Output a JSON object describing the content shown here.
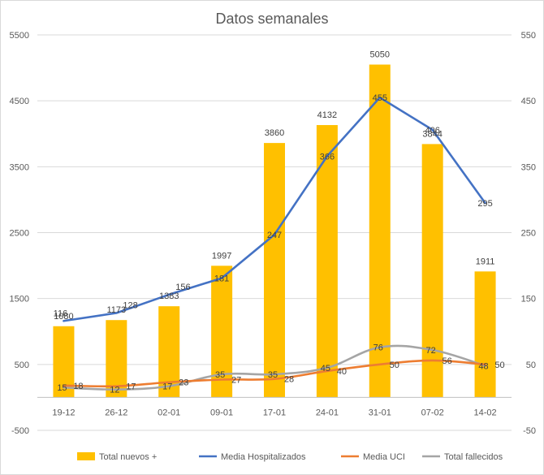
{
  "chart_data": {
    "type": "bar",
    "title": "Datos semanales",
    "categories": [
      "19-12",
      "26-12",
      "02-01",
      "09-01",
      "17-01",
      "24-01",
      "31-01",
      "07-02",
      "14-02"
    ],
    "y_left": {
      "min": -500,
      "max": 5500,
      "ticks": [
        -500,
        500,
        1500,
        2500,
        3500,
        4500,
        5500
      ]
    },
    "y_right": {
      "min": -50,
      "max": 550,
      "ticks": [
        -50,
        50,
        150,
        250,
        350,
        450,
        550
      ]
    },
    "grid": true,
    "legend_position": "bottom",
    "series": [
      {
        "name": "Total nuevos +",
        "kind": "bar",
        "axis": "left",
        "color": "#FFC000",
        "values": [
          1080,
          1173,
          1383,
          1997,
          3860,
          4132,
          5050,
          3844,
          1911
        ]
      },
      {
        "name": "Media Hospitalizados",
        "kind": "line",
        "axis": "right",
        "color": "#4472C4",
        "values": [
          116,
          128,
          156,
          181,
          247,
          366,
          455,
          406,
          295
        ]
      },
      {
        "name": "Media UCI",
        "kind": "line",
        "axis": "right",
        "color": "#ED7D31",
        "values": [
          18,
          17,
          23,
          27,
          28,
          40,
          50,
          56,
          50
        ]
      },
      {
        "name": "Total fallecidos",
        "kind": "line",
        "axis": "right",
        "color": "#A5A5A5",
        "values": [
          15,
          12,
          17,
          35,
          35,
          45,
          76,
          72,
          48
        ]
      }
    ]
  }
}
